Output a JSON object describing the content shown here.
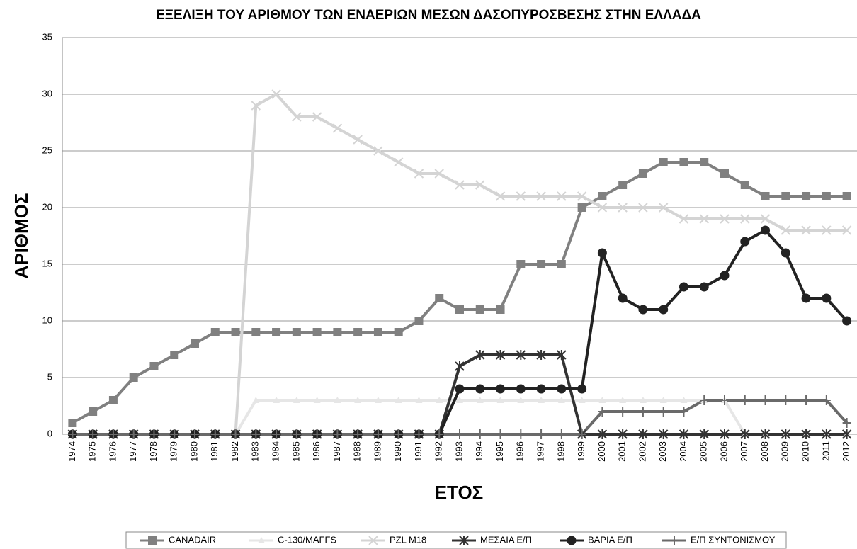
{
  "chart_data": {
    "type": "line",
    "title": "ΕΞΕΛΙΞΗ ΤΟΥ ΑΡΙΘΜΟΥ ΤΩΝ ΕΝΑΕΡΙΩΝ ΜΕΣΩΝ ΔΑΣΟΠΥΡΟΣΒΕΣΗΣ ΣΤΗΝ ΕΛΛΑΔΑ",
    "x_label": "ΕΤΟΣ",
    "y_label": "ΑΡΙΘΜΟΣ",
    "categories": [
      "1974",
      "1975",
      "1976",
      "1977",
      "1978",
      "1979",
      "1980",
      "1981",
      "1982",
      "1983",
      "1984",
      "1985",
      "1986",
      "1987",
      "1988",
      "1989",
      "1990",
      "1991",
      "1992",
      "1993",
      "1994",
      "1995",
      "1996",
      "1997",
      "1998",
      "1999",
      "2000",
      "2001",
      "2002",
      "2003",
      "2004",
      "2005",
      "2006",
      "2007",
      "2008",
      "2009",
      "2010",
      "2011",
      "2012"
    ],
    "ylim": [
      0,
      35
    ],
    "yticks": [
      0,
      5,
      10,
      15,
      20,
      25,
      30,
      35
    ],
    "grid": true,
    "legend": "bottom",
    "series": [
      {
        "name": "CANADAIR",
        "color": "#808080",
        "marker": "square",
        "values": [
          1,
          2,
          3,
          5,
          6,
          7,
          8,
          9,
          9,
          9,
          9,
          9,
          9,
          9,
          9,
          9,
          9,
          10,
          12,
          11,
          11,
          11,
          15,
          15,
          15,
          20,
          21,
          22,
          23,
          24,
          24,
          24,
          23,
          22,
          21,
          21,
          21,
          21,
          21
        ]
      },
      {
        "name": "C-130/MAFFS",
        "color": "#e6e6e6",
        "marker": "triangle",
        "values": [
          0,
          0,
          0,
          0,
          0,
          0,
          0,
          0,
          0,
          3,
          3,
          3,
          3,
          3,
          3,
          3,
          3,
          3,
          3,
          3,
          3,
          3,
          3,
          3,
          3,
          3,
          3,
          3,
          3,
          3,
          3,
          3,
          3,
          0,
          0,
          0,
          0,
          0,
          0
        ]
      },
      {
        "name": "PZL M18",
        "color": "#d4d4d4",
        "marker": "x",
        "values": [
          0,
          0,
          0,
          0,
          0,
          0,
          0,
          0,
          0,
          29,
          30,
          28,
          28,
          27,
          26,
          25,
          24,
          23,
          23,
          22,
          22,
          21,
          21,
          21,
          21,
          21,
          20,
          20,
          20,
          20,
          19,
          19,
          19,
          19,
          19,
          18,
          18,
          18,
          18
        ]
      },
      {
        "name": "ΜΕΣΑΙΑ Ε/Π",
        "color": "#333333",
        "marker": "star",
        "values": [
          0,
          0,
          0,
          0,
          0,
          0,
          0,
          0,
          0,
          0,
          0,
          0,
          0,
          0,
          0,
          0,
          0,
          0,
          0,
          6,
          7,
          7,
          7,
          7,
          7,
          0,
          0,
          0,
          0,
          0,
          0,
          0,
          0,
          0,
          0,
          0,
          0,
          0,
          0
        ]
      },
      {
        "name": "ΒΑΡΙΑ Ε/Π",
        "color": "#222222",
        "marker": "circle",
        "values": [
          0,
          0,
          0,
          0,
          0,
          0,
          0,
          0,
          0,
          0,
          0,
          0,
          0,
          0,
          0,
          0,
          0,
          0,
          0,
          4,
          4,
          4,
          4,
          4,
          4,
          4,
          16,
          12,
          11,
          11,
          13,
          13,
          14,
          17,
          18,
          16,
          12,
          12,
          10
        ]
      },
      {
        "name": "Ε/Π ΣΥΝΤΟΝΙΣΜΟΥ",
        "color": "#6a6a6a",
        "marker": "plus",
        "values": [
          0,
          0,
          0,
          0,
          0,
          0,
          0,
          0,
          0,
          0,
          0,
          0,
          0,
          0,
          0,
          0,
          0,
          0,
          0,
          0,
          0,
          0,
          0,
          0,
          0,
          0,
          2,
          2,
          2,
          2,
          2,
          3,
          3,
          3,
          3,
          3,
          3,
          3,
          1
        ]
      }
    ]
  }
}
